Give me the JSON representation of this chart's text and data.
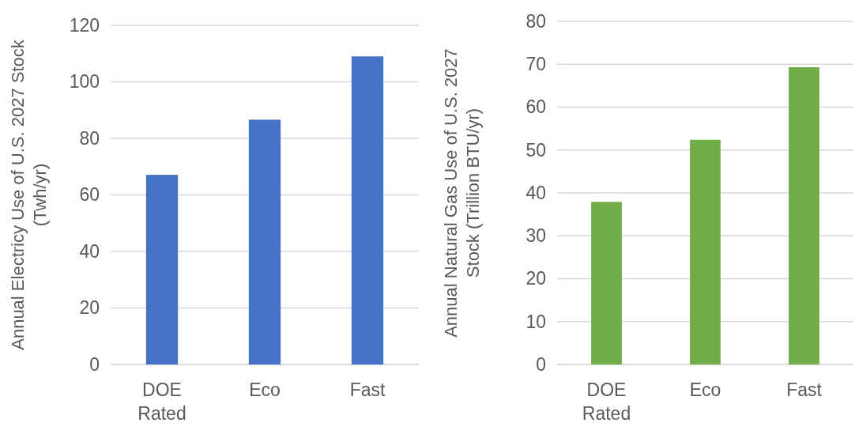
{
  "chart_data": [
    {
      "type": "bar",
      "ylabel": "Annual Electricy Use of U.S. 2027 Stock (Twh/yr)",
      "categories": [
        "DOE Rated",
        "Eco",
        "Fast"
      ],
      "values": [
        67.1,
        86.6,
        109.0
      ],
      "color": "#4472c4",
      "ylim": [
        0,
        120
      ],
      "yticks": [
        0,
        20,
        40,
        60,
        80,
        100,
        120
      ],
      "grid": "y"
    },
    {
      "type": "bar",
      "ylabel": "Annual Natural Gas Use of U.S. 2027 Stock (Trillion BTU/yr)",
      "categories": [
        "DOE Rated",
        "Eco",
        "Fast"
      ],
      "values": [
        37.9,
        52.4,
        69.3
      ],
      "color": "#70ad47",
      "ylim": [
        0,
        80
      ],
      "yticks": [
        0,
        10,
        20,
        30,
        40,
        50,
        60,
        70,
        80
      ],
      "grid": "y"
    }
  ]
}
